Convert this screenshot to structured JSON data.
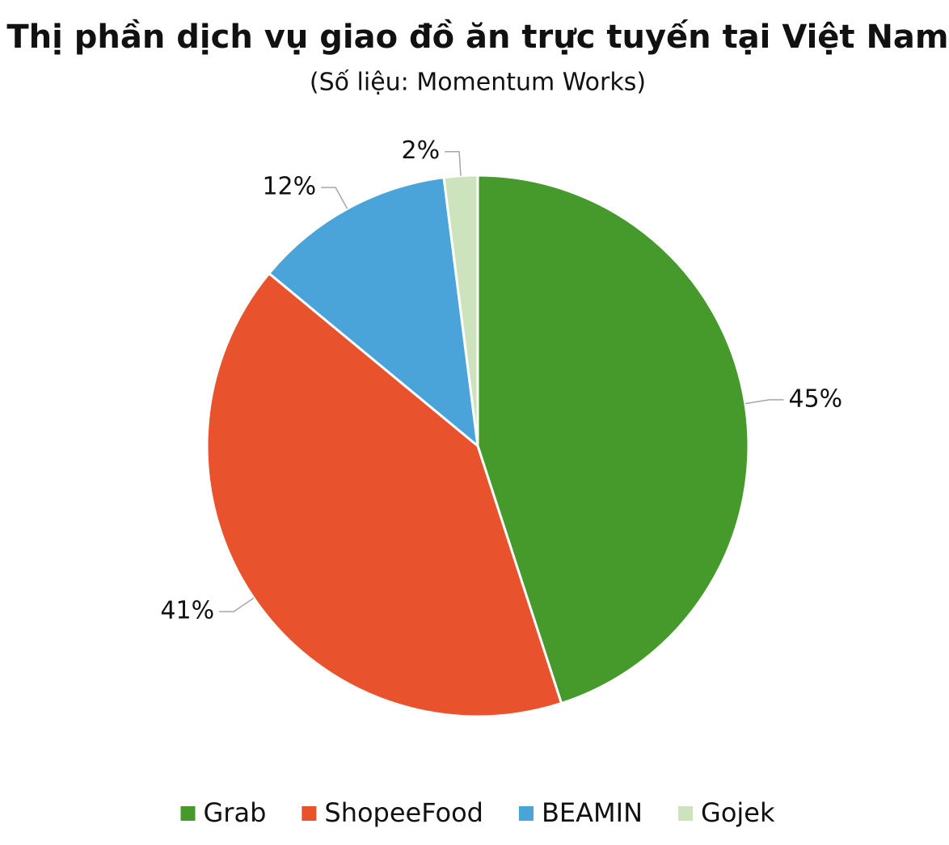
{
  "chart_data": {
    "type": "pie",
    "title": "Thị phần dịch vụ giao đồ ăn trực tuyến tại Việt Nam",
    "subtitle": "(Số liệu: Momentum Works)",
    "categories": [
      "Grab",
      "ShopeeFood",
      "BEAMIN",
      "Gojek"
    ],
    "values": [
      45,
      41,
      12,
      2
    ],
    "value_labels": [
      "45%",
      "41%",
      "12%",
      "2%"
    ],
    "colors": [
      "#469a2c",
      "#e8522c",
      "#4aa3d9",
      "#cde3be"
    ],
    "legend": "bottom"
  }
}
